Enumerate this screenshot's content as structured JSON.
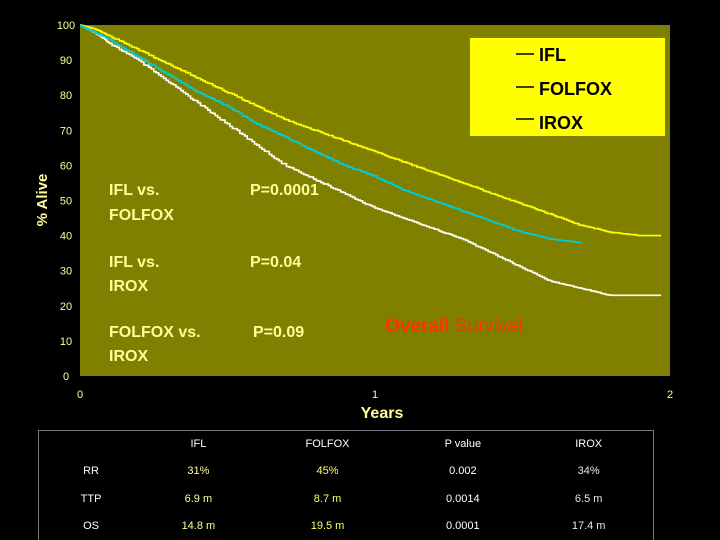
{
  "chart_data": {
    "type": "line",
    "title_bold": "Overall",
    "title_rest": "Survival",
    "xlabel": "Years",
    "ylabel": "% Alive",
    "xlim": [
      0,
      2
    ],
    "ylim": [
      0,
      100
    ],
    "x_ticks": [
      "0",
      "1",
      "2"
    ],
    "y_ticks": [
      "0",
      "10",
      "20",
      "30",
      "40",
      "50",
      "60",
      "70",
      "80",
      "90",
      "100"
    ],
    "legend_position": "top-right",
    "series": [
      {
        "name": "IFL",
        "color": "#ffffff",
        "x": [
          0,
          0.05,
          0.1,
          0.2,
          0.3,
          0.4,
          0.5,
          0.6,
          0.7,
          0.8,
          0.9,
          1.0,
          1.1,
          1.2,
          1.3,
          1.4,
          1.5,
          1.6,
          1.7,
          1.8,
          1.9,
          1.97
        ],
        "y": [
          100,
          98,
          95,
          90,
          84,
          78,
          72,
          66,
          60,
          56,
          52,
          48,
          45,
          42,
          39,
          35,
          31,
          27,
          25,
          23,
          23,
          23
        ]
      },
      {
        "name": "FOLFOX",
        "color": "#ffff00",
        "x": [
          0,
          0.05,
          0.1,
          0.2,
          0.3,
          0.4,
          0.5,
          0.6,
          0.7,
          0.8,
          0.9,
          1.0,
          1.1,
          1.2,
          1.3,
          1.4,
          1.5,
          1.6,
          1.7,
          1.8,
          1.9,
          1.97
        ],
        "y": [
          100,
          99,
          97,
          93,
          89,
          85,
          81,
          77,
          73,
          70,
          67,
          64,
          61,
          58,
          55,
          52,
          49,
          46,
          43,
          41,
          40,
          40
        ]
      },
      {
        "name": "IROX",
        "color": "#00ccdd",
        "x": [
          0,
          0.05,
          0.1,
          0.2,
          0.3,
          0.4,
          0.5,
          0.6,
          0.7,
          0.8,
          0.9,
          1.0,
          1.1,
          1.2,
          1.3,
          1.4,
          1.5,
          1.6,
          1.7
        ],
        "y": [
          100,
          98,
          96,
          91,
          86,
          81,
          77,
          72,
          68,
          64,
          60,
          57,
          53,
          50,
          47,
          44,
          41,
          39,
          38
        ]
      }
    ],
    "annotations": [
      {
        "comparison": "IFL vs. FOLFOX",
        "line1": "IFL vs.",
        "line2": "FOLFOX",
        "p": "P=0.0001"
      },
      {
        "comparison": "IFL vs. IROX",
        "line1": "IFL vs.",
        "line2": "IROX",
        "p": "P=0.04"
      },
      {
        "comparison": "FOLFOX vs. IROX",
        "line1": "FOLFOX vs.",
        "line2": "IROX",
        "p": "P=0.09"
      }
    ]
  },
  "table": {
    "headers": [
      "",
      "IFL",
      "FOLFOX",
      "P value",
      "IROX"
    ],
    "rows": [
      [
        "RR",
        "31%",
        "45%",
        "0.002",
        "34%"
      ],
      [
        "TTP",
        "6.9 m",
        "8.7 m",
        "0.0014",
        "6.5 m"
      ],
      [
        "OS",
        "14.8 m",
        "19.5 m",
        "0.0001",
        "17.4 m"
      ]
    ]
  }
}
